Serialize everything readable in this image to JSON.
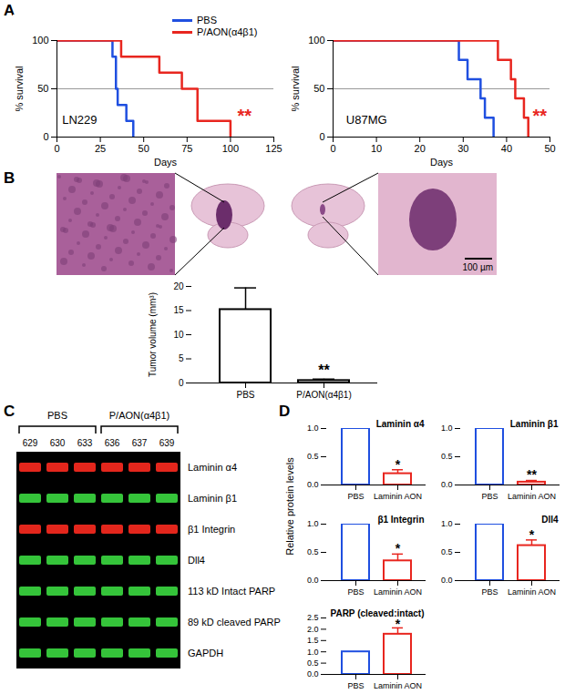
{
  "chart_data": [
    {
      "type": "line",
      "panel": "A",
      "xlabel": "Days",
      "ylabel": "% survival",
      "xlim": [
        0,
        125
      ],
      "xticks": [
        0,
        25,
        50,
        75,
        100,
        125
      ],
      "ylim": [
        0,
        100
      ],
      "yticks": [
        0,
        50,
        100
      ],
      "median_line": 50,
      "legend": "top-right",
      "series": [
        {
          "name": "PBS",
          "color": "#1f4fe0",
          "line_style": "step",
          "x": [
            0,
            32,
            34,
            35,
            40,
            44
          ],
          "values": [
            100,
            83.3,
            50,
            33.3,
            16.7,
            0
          ]
        },
        {
          "name": "P/AON(α4β1)",
          "color": "#e8261f",
          "line_style": "step",
          "x": [
            0,
            37,
            59,
            72,
            81,
            100
          ],
          "values": [
            100,
            83.3,
            66.7,
            50,
            16.7,
            0
          ]
        }
      ],
      "annotations": [
        {
          "text": "LN229",
          "x": 3,
          "y": 18,
          "color": "#000000"
        },
        {
          "text": "**",
          "x": 104,
          "y": 22,
          "color": "#e8261f"
        }
      ]
    },
    {
      "type": "line",
      "panel": "A",
      "xlabel": "Days",
      "ylabel": "% survival",
      "xlim": [
        0,
        50
      ],
      "xticks": [
        0,
        10,
        20,
        30,
        40,
        50
      ],
      "ylim": [
        0,
        100
      ],
      "yticks": [
        0,
        50,
        100
      ],
      "median_line": 50,
      "series": [
        {
          "name": "PBS",
          "color": "#1f4fe0",
          "line_style": "step",
          "x": [
            0,
            29,
            31,
            34,
            35,
            37
          ],
          "values": [
            100,
            80,
            60,
            40,
            20,
            0
          ]
        },
        {
          "name": "P/AON(α4β1)",
          "color": "#e8261f",
          "line_style": "step",
          "x": [
            0,
            38,
            41,
            42,
            44,
            45
          ],
          "values": [
            100,
            80,
            60,
            40,
            20,
            0
          ]
        }
      ],
      "annotations": [
        {
          "text": "U87MG",
          "x": 3,
          "y": 18,
          "color": "#000000"
        },
        {
          "text": "**",
          "x": 46,
          "y": 22,
          "color": "#e8261f"
        }
      ]
    },
    {
      "type": "bar",
      "panel": "B",
      "ylabel": "Tumor volume (mm³)",
      "categories": [
        "PBS",
        "P/AON(α4β1)"
      ],
      "values": [
        15.2,
        0.5
      ],
      "errors": [
        4.5,
        0.3
      ],
      "color": "#000000",
      "ylim": [
        0,
        20
      ],
      "yticks": [
        0,
        5,
        10,
        15,
        20
      ],
      "annotations": [
        {
          "text": "**",
          "category": "P/AON(α4β1)",
          "y": 2.5
        }
      ]
    },
    {
      "type": "bar",
      "panel": "D",
      "title": "Laminin α4",
      "categories": [
        "PBS",
        "Laminin AON"
      ],
      "values": [
        1,
        0.2
      ],
      "errors": [
        null,
        0.07
      ],
      "colors": [
        "#1f4fe0",
        "#e8261f"
      ],
      "ylim": [
        0,
        1
      ],
      "yticks": [
        {
          "value": 0,
          "label": "0.0"
        },
        {
          "value": 0.5,
          "label": "0.5"
        },
        {
          "value": 1,
          "label": "1.0"
        }
      ],
      "annotations": [
        {
          "text": "*",
          "category": "Laminin AON",
          "y": 0.36
        }
      ]
    },
    {
      "type": "bar",
      "panel": "D",
      "title": "Laminin β1",
      "categories": [
        "PBS",
        "Laminin AON"
      ],
      "values": [
        1,
        0.05
      ],
      "errors": [
        null,
        0.03
      ],
      "colors": [
        "#1f4fe0",
        "#e8261f"
      ],
      "ylim": [
        0,
        1
      ],
      "yticks": [
        {
          "value": 0,
          "label": "0.0"
        },
        {
          "value": 0.5,
          "label": "0.5"
        },
        {
          "value": 1,
          "label": "1.0"
        }
      ],
      "annotations": [
        {
          "text": "**",
          "category": "Laminin AON",
          "y": 0.17
        }
      ]
    },
    {
      "type": "bar",
      "panel": "D",
      "title": "β1 Integrin",
      "ylabel": "Relative protein levels",
      "categories": [
        "PBS",
        "Laminin AON"
      ],
      "values": [
        1,
        0.35
      ],
      "errors": [
        null,
        0.12
      ],
      "colors": [
        "#1f4fe0",
        "#e8261f"
      ],
      "ylim": [
        0,
        1
      ],
      "yticks": [
        {
          "value": 0,
          "label": "0.0"
        },
        {
          "value": 0.5,
          "label": "0.5"
        },
        {
          "value": 1,
          "label": "1.0"
        }
      ],
      "annotations": [
        {
          "text": "*",
          "category": "Laminin AON",
          "y": 0.56
        }
      ]
    },
    {
      "type": "bar",
      "panel": "D",
      "title": "Dll4",
      "categories": [
        "PBS",
        "Laminin AON"
      ],
      "values": [
        1,
        0.62
      ],
      "errors": [
        null,
        0.1
      ],
      "colors": [
        "#1f4fe0",
        "#e8261f"
      ],
      "ylim": [
        0,
        1
      ],
      "yticks": [
        {
          "value": 0,
          "label": "0.0"
        },
        {
          "value": 0.5,
          "label": "0.5"
        },
        {
          "value": 1,
          "label": "1.0"
        }
      ],
      "annotations": [
        {
          "text": "*",
          "category": "Laminin AON",
          "y": 0.8
        }
      ]
    },
    {
      "type": "bar",
      "panel": "D",
      "title": "PARP (cleaved:intact)",
      "categories": [
        "PBS",
        "Laminin AON"
      ],
      "values": [
        1,
        1.78
      ],
      "errors": [
        null,
        0.28
      ],
      "colors": [
        "#1f4fe0",
        "#e8261f"
      ],
      "ylim": [
        0,
        2.5
      ],
      "yticks": [
        {
          "value": 0,
          "label": "0.0"
        },
        {
          "value": 0.5,
          "label": "0.5"
        },
        {
          "value": 1,
          "label": "1.0"
        },
        {
          "value": 1.5,
          "label": "1.5"
        },
        {
          "value": 2,
          "label": "2.0"
        },
        {
          "value": 2.5,
          "label": "2.5"
        }
      ],
      "annotations": [
        {
          "text": "*",
          "category": "Laminin AON",
          "y": 2.2
        }
      ]
    }
  ],
  "figure": {
    "panel_labels": [
      "A",
      "B",
      "C",
      "D"
    ],
    "histology": {
      "scale_bar": "100 µm"
    },
    "blot": {
      "groups": [
        {
          "name": "PBS",
          "lanes": [
            "629",
            "630",
            "633"
          ]
        },
        {
          "name": "P/AON(α4β1)",
          "lanes": [
            "636",
            "637",
            "639"
          ]
        }
      ],
      "rows": [
        {
          "label": "Laminin α4",
          "color": "#e3261c"
        },
        {
          "label": "Laminin β1",
          "color": "#35c43a"
        },
        {
          "label": "β1 Integrin",
          "color": "#e3261c"
        },
        {
          "label": "Dll4",
          "color": "#35c43a"
        },
        {
          "label": "113 kD Intact PARP",
          "color": "#35c43a"
        },
        {
          "label": "89 kD cleaved PARP",
          "color": "#35c43a"
        },
        {
          "label": "GAPDH",
          "color": "#35c43a"
        }
      ]
    }
  }
}
